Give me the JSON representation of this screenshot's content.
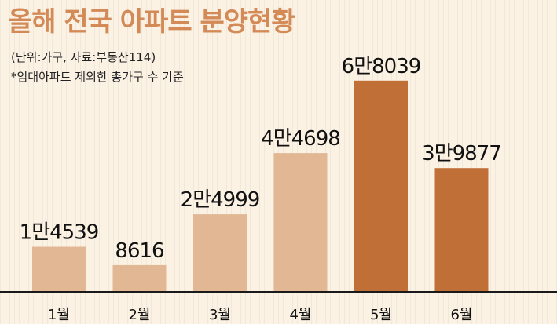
{
  "header": {
    "title": "올해 전국 아파트 분양현황",
    "unit_source": "(단위:가구, 자료:부동산114)",
    "note": "*임대아파트 제외한 총가구 수 기준"
  },
  "colors": {
    "background": "#fbf2e4",
    "title": "#d38a57",
    "bar_light": "#e2b894",
    "bar_dark": "#c06f37",
    "text": "#111111"
  },
  "chart_data": {
    "type": "bar",
    "title": "올해 전국 아파트 분양현황",
    "categories": [
      "1월",
      "2월",
      "3월",
      "4월",
      "5월",
      "6월"
    ],
    "values": [
      14539,
      8616,
      24999,
      44698,
      68039,
      39877
    ],
    "value_labels": [
      "1만4539",
      "8616",
      "2만4999",
      "4만4698",
      "6만8039",
      "3만9877"
    ],
    "highlight": [
      false,
      false,
      false,
      false,
      true,
      true
    ],
    "ylim": [
      0,
      70000
    ],
    "grid": false,
    "legend": "none",
    "xlabel": "",
    "ylabel": ""
  }
}
